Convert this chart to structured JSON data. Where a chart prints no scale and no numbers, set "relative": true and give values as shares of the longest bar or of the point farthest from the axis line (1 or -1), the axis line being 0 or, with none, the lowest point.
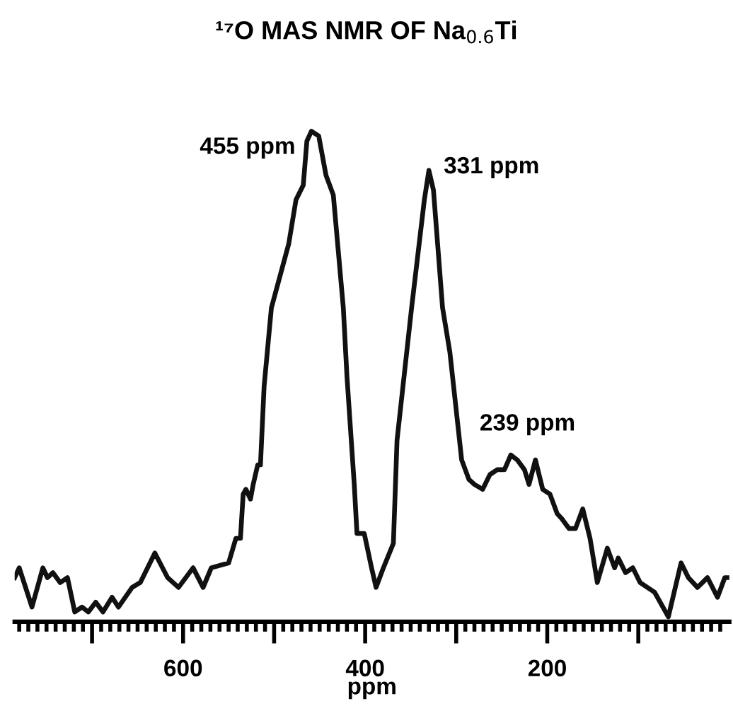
{
  "chart_data": {
    "type": "line",
    "title": "¹⁷O MAS NMR OF Na$_{0.6}$Ti",
    "xlabel": "ppm",
    "relative": true,
    "x": [
      785,
      780,
      766,
      754,
      749,
      743,
      735,
      727,
      719,
      711,
      704,
      696,
      688,
      678,
      671,
      656,
      647,
      631,
      617,
      605,
      589,
      578,
      569,
      550,
      542,
      537,
      534,
      531,
      526,
      523,
      518,
      515,
      511,
      503,
      484,
      476,
      468,
      464,
      459,
      451,
      443,
      435,
      424,
      420,
      412,
      409,
      401,
      393,
      388,
      380,
      369,
      365,
      349,
      335,
      330,
      325,
      315,
      307,
      294,
      286,
      280,
      271,
      263,
      255,
      247,
      240,
      233,
      225,
      220,
      213,
      205,
      197,
      189,
      184,
      176,
      169,
      161,
      153,
      145,
      134,
      126,
      122,
      114,
      106,
      98,
      82,
      67,
      53,
      45,
      35,
      24,
      13,
      5,
      0
    ],
    "series": [
      {
        "color": "#111111",
        "values": [
          0.09,
          0.11,
          0.03,
          0.11,
          0.09,
          0.1,
          0.08,
          0.09,
          0.02,
          0.03,
          0.02,
          0.04,
          0.02,
          0.05,
          0.03,
          0.07,
          0.08,
          0.14,
          0.09,
          0.07,
          0.11,
          0.07,
          0.11,
          0.12,
          0.17,
          0.17,
          0.26,
          0.27,
          0.25,
          0.28,
          0.32,
          0.32,
          0.48,
          0.64,
          0.77,
          0.86,
          0.89,
          0.98,
          1.0,
          0.99,
          0.91,
          0.87,
          0.64,
          0.5,
          0.28,
          0.18,
          0.18,
          0.11,
          0.07,
          0.11,
          0.16,
          0.37,
          0.64,
          0.86,
          0.92,
          0.88,
          0.64,
          0.55,
          0.33,
          0.29,
          0.28,
          0.27,
          0.3,
          0.31,
          0.31,
          0.34,
          0.33,
          0.31,
          0.28,
          0.33,
          0.27,
          0.26,
          0.22,
          0.21,
          0.19,
          0.19,
          0.23,
          0.17,
          0.08,
          0.15,
          0.11,
          0.13,
          0.1,
          0.11,
          0.08,
          0.06,
          0.01,
          0.12,
          0.09,
          0.07,
          0.09,
          0.05,
          0.09,
          0.09
        ]
      }
    ],
    "xlim": [
      785,
      0
    ],
    "xticks": [
      {
        "value": 780,
        "label": null
      },
      {
        "value": 770,
        "label": null
      },
      {
        "value": 760,
        "label": null
      },
      {
        "value": 750,
        "label": null
      },
      {
        "value": 740,
        "label": null
      },
      {
        "value": 730,
        "label": null
      },
      {
        "value": 720,
        "label": null
      },
      {
        "value": 710,
        "label": null
      },
      {
        "value": 700,
        "label": null
      },
      {
        "value": 690,
        "label": null
      },
      {
        "value": 680,
        "label": null
      },
      {
        "value": 670,
        "label": null
      },
      {
        "value": 660,
        "label": null
      },
      {
        "value": 650,
        "label": null
      },
      {
        "value": 640,
        "label": null
      },
      {
        "value": 630,
        "label": null
      },
      {
        "value": 620,
        "label": null
      },
      {
        "value": 610,
        "label": null
      },
      600,
      {
        "value": 590,
        "label": null
      },
      {
        "value": 580,
        "label": null
      },
      {
        "value": 570,
        "label": null
      },
      {
        "value": 560,
        "label": null
      },
      {
        "value": 550,
        "label": null
      },
      {
        "value": 540,
        "label": null
      },
      {
        "value": 530,
        "label": null
      },
      {
        "value": 520,
        "label": null
      },
      {
        "value": 510,
        "label": null
      },
      {
        "value": 500,
        "label": null
      },
      {
        "value": 490,
        "label": null
      },
      {
        "value": 480,
        "label": null
      },
      {
        "value": 470,
        "label": null
      },
      {
        "value": 460,
        "label": null
      },
      {
        "value": 450,
        "label": null
      },
      {
        "value": 440,
        "label": null
      },
      {
        "value": 430,
        "label": null
      },
      {
        "value": 420,
        "label": null
      },
      {
        "value": 410,
        "label": null
      },
      400,
      {
        "value": 390,
        "label": null
      },
      {
        "value": 380,
        "label": null
      },
      {
        "value": 370,
        "label": null
      },
      {
        "value": 360,
        "label": null
      },
      {
        "value": 350,
        "label": null
      },
      {
        "value": 340,
        "label": null
      },
      {
        "value": 330,
        "label": null
      },
      {
        "value": 320,
        "label": null
      },
      {
        "value": 310,
        "label": null
      },
      {
        "value": 300,
        "label": null
      },
      {
        "value": 290,
        "label": null
      },
      {
        "value": 280,
        "label": null
      },
      {
        "value": 270,
        "label": null
      },
      {
        "value": 260,
        "label": null
      },
      {
        "value": 250,
        "label": null
      },
      {
        "value": 240,
        "label": null
      },
      {
        "value": 230,
        "label": null
      },
      {
        "value": 220,
        "label": null
      },
      {
        "value": 210,
        "label": null
      },
      200,
      {
        "value": 190,
        "label": null
      },
      {
        "value": 180,
        "label": null
      },
      {
        "value": 170,
        "label": null
      },
      {
        "value": 160,
        "label": null
      },
      {
        "value": 150,
        "label": null
      },
      {
        "value": 140,
        "label": null
      },
      {
        "value": 130,
        "label": null
      },
      {
        "value": 120,
        "label": null
      },
      {
        "value": 110,
        "label": null
      },
      {
        "value": 100,
        "label": null
      },
      {
        "value": 90,
        "label": null
      },
      {
        "value": 80,
        "label": null
      },
      {
        "value": 70,
        "label": null
      },
      {
        "value": 60,
        "label": null
      },
      {
        "value": 50,
        "label": null
      },
      {
        "value": 40,
        "label": null
      },
      {
        "value": 30,
        "label": null
      },
      {
        "value": 20,
        "label": null
      },
      {
        "value": 10,
        "label": null
      }
    ],
    "annotations": [
      {
        "text": "455 ppm",
        "x": 455,
        "y": 1.0
      },
      {
        "text": "331 ppm",
        "x": 331,
        "y": 0.92
      },
      {
        "text": "239 ppm",
        "x": 239,
        "y": 0.34
      }
    ],
    "grid": false,
    "marker": "none",
    "line_style": "solid"
  }
}
